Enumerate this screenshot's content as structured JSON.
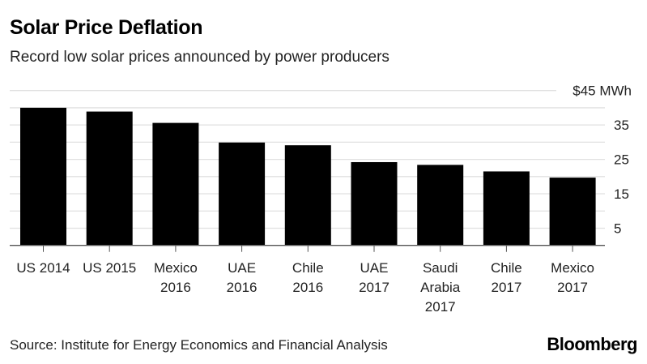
{
  "title": "Solar Price Deflation",
  "subtitle": "Record low solar prices announced by power producers",
  "source": "Source: Institute for Energy Economics and Financial Analysis",
  "logo": "Bloomberg",
  "chart_data": {
    "type": "bar",
    "categories": [
      [
        "US 2014"
      ],
      [
        "US 2015"
      ],
      [
        "Mexico",
        "2016"
      ],
      [
        "UAE",
        "2016"
      ],
      [
        "Chile",
        "2016"
      ],
      [
        "UAE",
        "2017"
      ],
      [
        "Saudi",
        "Arabia",
        "2017"
      ],
      [
        "Chile",
        "2017"
      ],
      [
        "Mexico",
        "2017"
      ]
    ],
    "values": [
      40.0,
      38.9,
      35.6,
      29.9,
      29.1,
      24.2,
      23.4,
      21.5,
      19.7
    ],
    "ylabel": "",
    "ylim": [
      0,
      45
    ],
    "yticks": [
      5,
      15,
      25,
      35,
      45
    ],
    "ytick_labels": [
      "5",
      "15",
      "25",
      "35",
      "$45 MWh"
    ],
    "grid_step": 5,
    "grid": true,
    "bar_color": "#000000",
    "grid_color": "#e0e0e0"
  }
}
